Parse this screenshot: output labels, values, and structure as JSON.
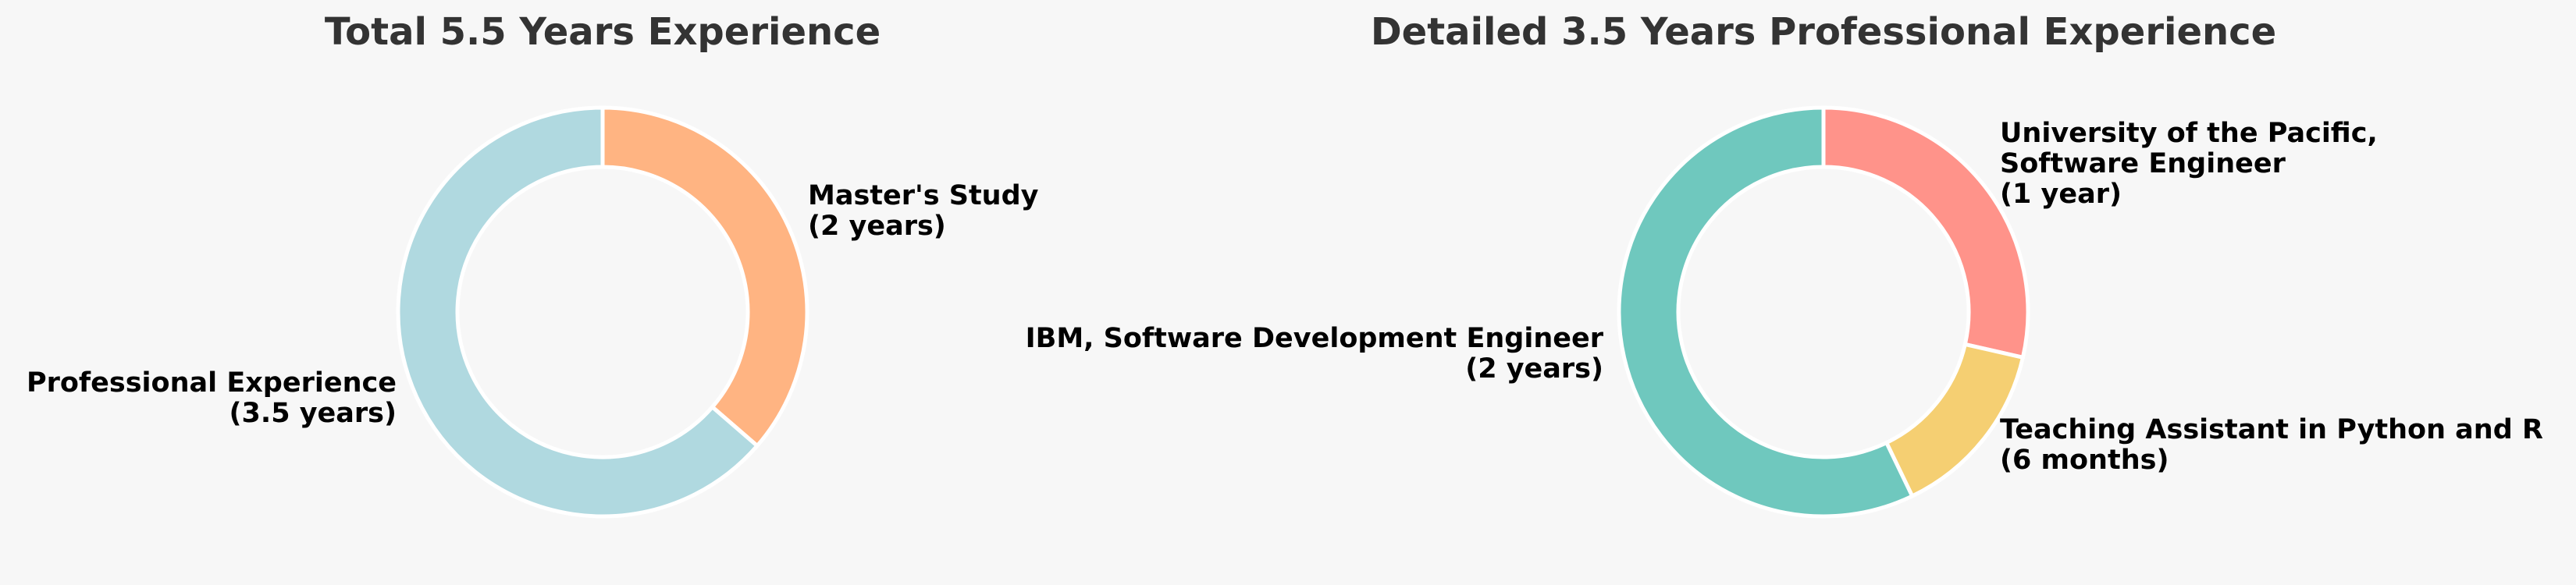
{
  "chart_data": [
    {
      "type": "pie",
      "variant": "donut",
      "title": "Total 5.5 Years Experience",
      "slices": [
        {
          "label": "Master's Study",
          "detail": "(2 years)",
          "value": 2,
          "color": "#ffb482"
        },
        {
          "label": "Professional Experience",
          "detail": "(3.5 years)",
          "value": 3.5,
          "color": "#b0d9e0"
        }
      ],
      "legend": "none"
    },
    {
      "type": "pie",
      "variant": "donut",
      "title": "Detailed 3.5 Years Professional Experience",
      "slices": [
        {
          "label": "University of the Pacific, Software Engineer",
          "label_lines": [
            "University of the Pacific,",
            "Software Engineer"
          ],
          "detail": "(1 year)",
          "value": 1,
          "color": "#ff938a"
        },
        {
          "label": "Teaching Assistant in Python and R",
          "detail": "(6 months)",
          "value": 0.5,
          "color": "#f5cf72"
        },
        {
          "label": "IBM, Software Development Engineer",
          "detail": "(2 years)",
          "value": 2,
          "color": "#6fc8be"
        }
      ],
      "legend": "none"
    }
  ]
}
